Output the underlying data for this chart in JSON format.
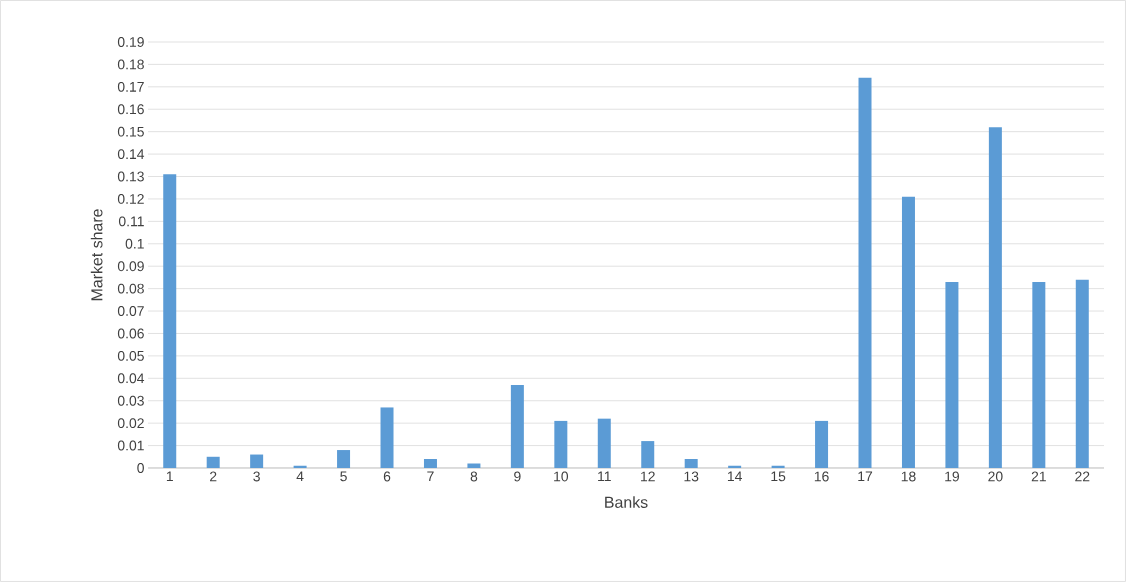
{
  "chart_data": {
    "type": "bar",
    "xlabel": "Banks",
    "ylabel": "Market share",
    "categories": [
      "1",
      "2",
      "3",
      "4",
      "5",
      "6",
      "7",
      "8",
      "9",
      "10",
      "11",
      "12",
      "13",
      "14",
      "15",
      "16",
      "17",
      "18",
      "19",
      "20",
      "21",
      "22"
    ],
    "values": [
      0.131,
      0.005,
      0.006,
      0.001,
      0.008,
      0.027,
      0.004,
      0.002,
      0.037,
      0.021,
      0.022,
      0.012,
      0.004,
      0.001,
      0.001,
      0.021,
      0.174,
      0.121,
      0.083,
      0.152,
      0.083,
      0.084
    ],
    "color": "#5b9bd5",
    "ylim": [
      0,
      0.19
    ],
    "yticks": [
      0,
      0.01,
      0.02,
      0.03,
      0.04,
      0.05,
      0.06,
      0.07,
      0.08,
      0.09,
      0.1,
      0.11,
      0.12,
      0.13,
      0.14,
      0.15,
      0.16,
      0.17,
      0.18,
      0.19
    ],
    "grid": "y"
  }
}
